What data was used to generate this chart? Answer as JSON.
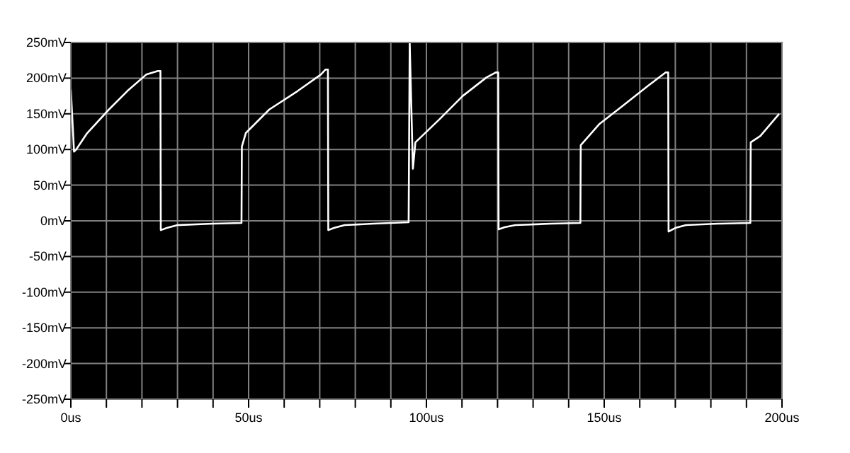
{
  "chart_data": {
    "type": "line",
    "x": [
      0,
      0.9,
      1.5,
      4.6,
      10.7,
      15.9,
      21.2,
      24.5,
      25.2,
      25.3,
      27,
      30,
      40,
      48,
      48.1,
      49.2,
      55.8,
      63.8,
      70.3,
      71.6,
      72.3,
      72.4,
      74,
      77,
      85,
      95,
      95.3,
      96.2,
      96.9,
      103.6,
      110.2,
      116.9,
      119.5,
      120.2,
      120.3,
      122,
      125,
      135,
      143.3,
      143.4,
      148.7,
      155.4,
      162,
      167.3,
      168,
      168.1,
      170,
      173,
      182,
      191.1,
      191.2,
      193.9,
      199.2
    ],
    "series": [
      {
        "color": "#ffffff",
        "values": [
          184,
          97,
          100,
          123,
          156,
          182,
          205,
          210,
          210,
          -13,
          -10,
          -6,
          -4,
          -3,
          104,
          123,
          156,
          182,
          205,
          212,
          212,
          -13,
          -10,
          -6,
          -4,
          -2,
          250,
          73,
          110,
          142,
          175,
          201,
          208,
          208,
          -12,
          -9,
          -6,
          -4,
          -3,
          106,
          136,
          162,
          188,
          208,
          208,
          -15,
          -10,
          -6,
          -4,
          -3,
          110,
          119,
          150
        ]
      }
    ],
    "xlim": [
      0,
      200
    ],
    "xticks": [
      {
        "value": 0,
        "label": "0us"
      },
      {
        "value": 10,
        "label": null
      },
      {
        "value": 20,
        "label": null
      },
      {
        "value": 30,
        "label": null
      },
      {
        "value": 40,
        "label": null
      },
      {
        "value": 50,
        "label": "50us"
      },
      {
        "value": 60,
        "label": null
      },
      {
        "value": 70,
        "label": null
      },
      {
        "value": 80,
        "label": null
      },
      {
        "value": 90,
        "label": null
      },
      {
        "value": 100,
        "label": "100us"
      },
      {
        "value": 110,
        "label": null
      },
      {
        "value": 120,
        "label": null
      },
      {
        "value": 130,
        "label": null
      },
      {
        "value": 140,
        "label": null
      },
      {
        "value": 150,
        "label": "150us"
      },
      {
        "value": 160,
        "label": null
      },
      {
        "value": 170,
        "label": null
      },
      {
        "value": 180,
        "label": null
      },
      {
        "value": 190,
        "label": null
      },
      {
        "value": 200,
        "label": "200us"
      }
    ],
    "ylim": [
      -250,
      250
    ],
    "yticks": [
      {
        "value": -250,
        "label": "-250mV"
      },
      {
        "value": -200,
        "label": "-200mV"
      },
      {
        "value": -150,
        "label": "-150mV"
      },
      {
        "value": -100,
        "label": "-100mV"
      },
      {
        "value": -50,
        "label": "-50mV"
      },
      {
        "value": 0,
        "label": "0mV"
      },
      {
        "value": 50,
        "label": "50mV"
      },
      {
        "value": 100,
        "label": "100mV"
      },
      {
        "value": 150,
        "label": "150mV"
      },
      {
        "value": 200,
        "label": "200mV"
      },
      {
        "value": 250,
        "label": "250mV"
      }
    ],
    "grid": true,
    "marker": "none",
    "line_style": "solid"
  }
}
